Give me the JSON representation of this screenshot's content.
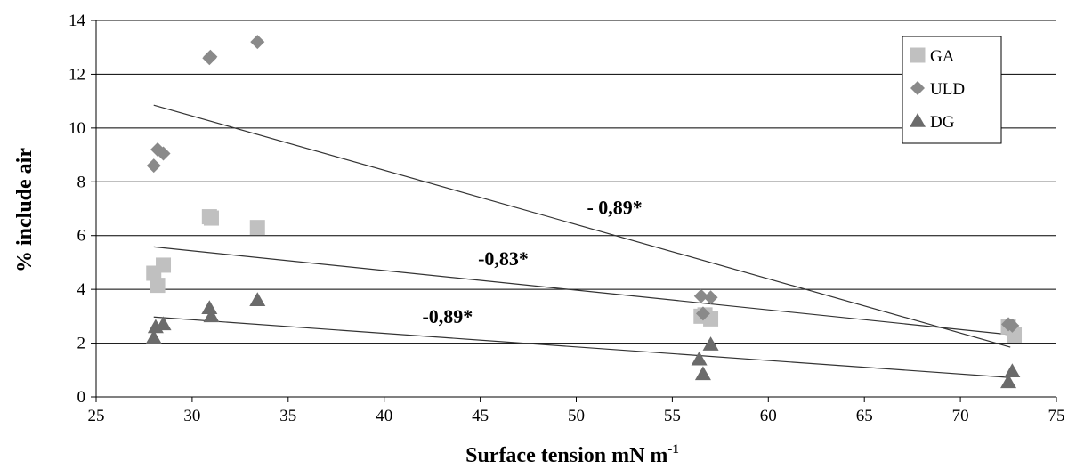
{
  "chart_data": {
    "type": "scatter",
    "xlabel": "Surface tension mN m",
    "xlabel_sup": "-1",
    "ylabel": "% include air",
    "xlim": [
      25,
      75
    ],
    "ylim": [
      0,
      14
    ],
    "xticks": [
      25,
      30,
      35,
      40,
      45,
      50,
      55,
      60,
      65,
      70,
      75
    ],
    "yticks": [
      0,
      2,
      4,
      6,
      8,
      10,
      12,
      14
    ],
    "grid": "horizontal",
    "legend_position": "top-right",
    "series": [
      {
        "name": "GA",
        "marker": "square",
        "color": "#c0c0c0",
        "points": [
          [
            28.0,
            4.6
          ],
          [
            28.2,
            4.15
          ],
          [
            28.5,
            4.9
          ],
          [
            30.9,
            6.7
          ],
          [
            31.0,
            6.65
          ],
          [
            33.4,
            6.3
          ],
          [
            56.5,
            3.0
          ],
          [
            56.7,
            3.05
          ],
          [
            57.0,
            2.9
          ],
          [
            72.5,
            2.6
          ],
          [
            72.8,
            2.3
          ]
        ],
        "trend": [
          [
            28.0,
            5.58
          ],
          [
            72.8,
            2.3
          ]
        ]
      },
      {
        "name": "ULD",
        "marker": "diamond",
        "color": "#8a8a8a",
        "points": [
          [
            28.0,
            8.6
          ],
          [
            28.2,
            9.2
          ],
          [
            28.5,
            9.05
          ],
          [
            30.9,
            12.6
          ],
          [
            30.95,
            12.65
          ],
          [
            33.4,
            13.2
          ],
          [
            56.5,
            3.75
          ],
          [
            56.6,
            3.1
          ],
          [
            57.0,
            3.7
          ],
          [
            72.5,
            2.7
          ],
          [
            72.7,
            2.65
          ]
        ],
        "trend": [
          [
            28.0,
            10.85
          ],
          [
            72.6,
            1.85
          ]
        ]
      },
      {
        "name": "DG",
        "marker": "triangle",
        "color": "#6b6b6b",
        "points": [
          [
            28.0,
            2.2
          ],
          [
            28.1,
            2.6
          ],
          [
            28.5,
            2.7
          ],
          [
            30.9,
            3.3
          ],
          [
            31.0,
            3.0
          ],
          [
            33.4,
            3.6
          ],
          [
            56.4,
            1.4
          ],
          [
            56.6,
            0.85
          ],
          [
            57.0,
            1.95
          ],
          [
            72.5,
            0.55
          ],
          [
            72.7,
            0.95
          ]
        ],
        "trend": [
          [
            28.0,
            2.97
          ],
          [
            72.6,
            0.72
          ]
        ]
      }
    ],
    "annotations": [
      {
        "text": "- 0,89*",
        "x": 52.0,
        "y": 6.8
      },
      {
        "text": "-0,83*",
        "x": 46.2,
        "y": 4.9
      },
      {
        "text": "-0,89*",
        "x": 43.3,
        "y": 2.75
      }
    ]
  }
}
